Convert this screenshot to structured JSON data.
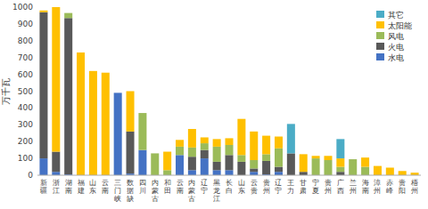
{
  "chart_data": {
    "type": "bar",
    "stacked": true,
    "categories": [
      "新\n疆",
      "浙\n江",
      "湖\n南",
      "福\n建",
      "山\n东",
      "云\n南",
      "三\n门\n峡",
      "数\n据\n缺",
      "四\n川",
      "内\n蒙\n古",
      "和\n田",
      "云\n南",
      "内\n蒙\n古",
      "辽\n宁",
      "黑\n龙\n江",
      "长\n白",
      "山\n东",
      "云\n贵",
      "贵\n州",
      "辽\n宁",
      "王\n力",
      "甘\n肃",
      "宁\n夏",
      "贵\n州",
      "广\n西",
      "兰\n州",
      "海\n南",
      "漳\n州",
      "赤\n峰",
      "贵\n阳",
      "梧\n州"
    ],
    "series": [
      {
        "name": "水电",
        "color": "#4472C4",
        "values": [
          100,
          20,
          5,
          0,
          0,
          0,
          490,
          10,
          150,
          0,
          0,
          120,
          30,
          100,
          30,
          30,
          0,
          20,
          5,
          20,
          0,
          0,
          0,
          0,
          0,
          0,
          0,
          0,
          0,
          0,
          0
        ]
      },
      {
        "name": "火电",
        "color": "#595959",
        "values": [
          870,
          120,
          930,
          0,
          0,
          0,
          0,
          250,
          0,
          0,
          0,
          0,
          80,
          50,
          50,
          90,
          80,
          20,
          80,
          30,
          130,
          20,
          0,
          0,
          20,
          0,
          0,
          0,
          0,
          0,
          0
        ]
      },
      {
        "name": "风电",
        "color": "#9BBB59",
        "values": [
          0,
          0,
          30,
          0,
          0,
          0,
          0,
          0,
          220,
          130,
          30,
          50,
          55,
          40,
          90,
          60,
          40,
          50,
          40,
          110,
          0,
          0,
          100,
          90,
          30,
          95,
          50,
          0,
          0,
          0,
          0
        ]
      },
      {
        "name": "太阳能",
        "color": "#FFC000",
        "values": [
          10,
          860,
          0,
          730,
          620,
          610,
          0,
          240,
          0,
          0,
          110,
          40,
          110,
          35,
          45,
          40,
          215,
          170,
          110,
          70,
          0,
          105,
          15,
          25,
          50,
          0,
          55,
          55,
          45,
          25,
          15
        ]
      },
      {
        "name": "其它",
        "color": "#4BACC6",
        "values": [
          0,
          0,
          0,
          0,
          0,
          0,
          0,
          0,
          0,
          0,
          0,
          0,
          0,
          0,
          0,
          0,
          0,
          0,
          0,
          0,
          175,
          0,
          0,
          0,
          115,
          0,
          0,
          0,
          0,
          0,
          0
        ]
      }
    ],
    "ylabel": "万千瓦",
    "ylim": [
      0,
      1000
    ],
    "yticks": [
      0,
      100,
      200,
      300,
      400,
      500,
      600,
      700,
      800,
      900,
      1000
    ],
    "grid": false,
    "legend": "upper right"
  }
}
